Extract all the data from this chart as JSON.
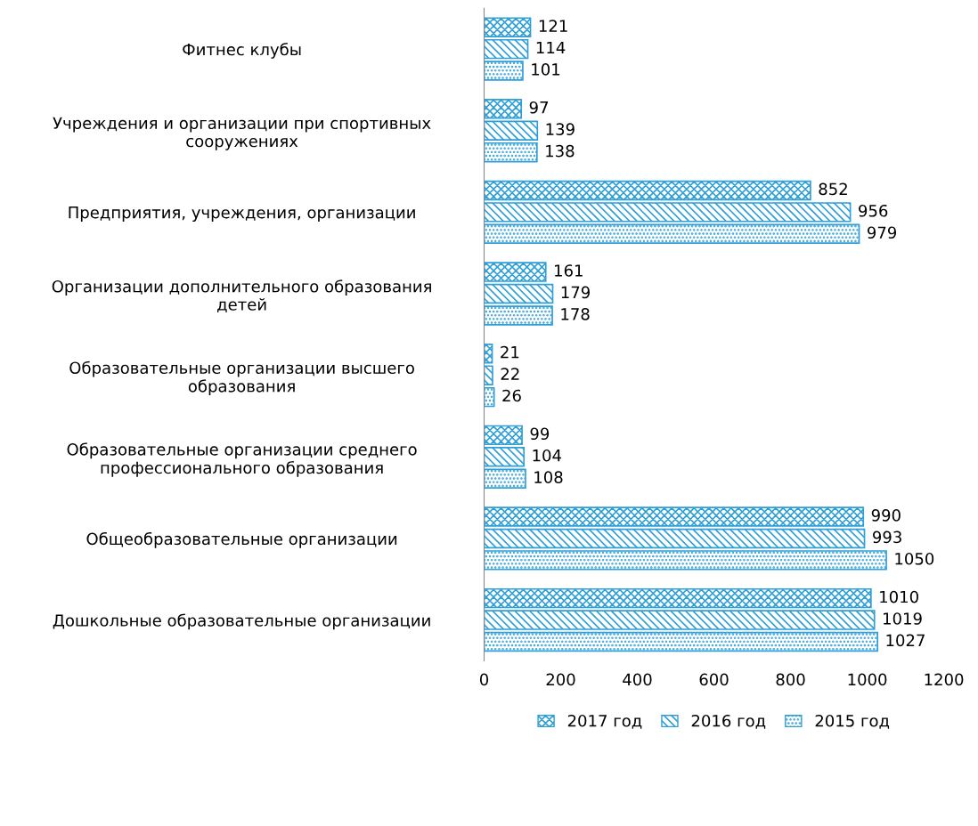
{
  "chart_data": {
    "type": "bar",
    "orientation": "horizontal",
    "categories": [
      "Фитнес клубы",
      "Учреждения и организации при спортивных\nсооружениях",
      "Предприятия, учреждения, организации",
      "Организации дополнительного образования\nдетей",
      "Образовательные организации высшего\nобразования",
      "Образовательные организации среднего\nпрофессионального образования",
      "Общеобразовательные организации",
      "Дошкольные образовательные организации"
    ],
    "series": [
      {
        "name": "2017 год",
        "color": "#2f9fd8",
        "values": [
          121,
          97,
          852,
          161,
          21,
          99,
          990,
          1010
        ]
      },
      {
        "name": "2016 год",
        "color": "#2f9fd8",
        "values": [
          114,
          139,
          956,
          179,
          22,
          104,
          993,
          1019
        ]
      },
      {
        "name": "2015 год",
        "color": "#2f9fd8",
        "values": [
          101,
          138,
          979,
          178,
          26,
          108,
          1050,
          1027
        ]
      }
    ],
    "xlim": [
      0,
      1200
    ],
    "xticks": [
      0,
      200,
      400,
      600,
      800,
      1000,
      1200
    ],
    "data_labels": true,
    "grid": false,
    "legend": "bottom"
  }
}
